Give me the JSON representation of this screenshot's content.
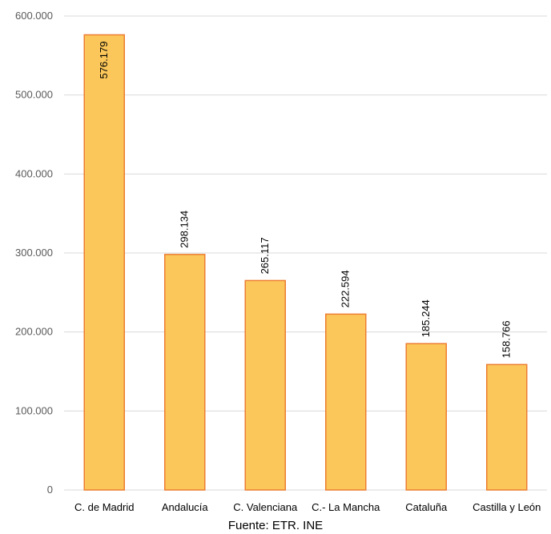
{
  "chart_data": {
    "type": "bar",
    "categories": [
      "C. de Madrid",
      "Andalucía",
      "C. Valenciana",
      "C.- La Mancha",
      "Cataluña",
      "Castilla y León"
    ],
    "values": [
      576179,
      298134,
      265117,
      222594,
      185244,
      158766
    ],
    "data_labels": [
      "576.179",
      "298.134",
      "265.117",
      "222.594",
      "185.244",
      "158.766"
    ],
    "yticks": [
      0,
      100000,
      200000,
      300000,
      400000,
      500000,
      600000
    ],
    "ytick_labels": [
      "0",
      "100.000",
      "200.000",
      "300.000",
      "400.000",
      "500.000",
      "600.000"
    ],
    "ylim": [
      0,
      600000
    ],
    "grid": true,
    "legend": "none",
    "bar_color": "#FBC75A",
    "bar_edge_color": "#ED7D31"
  },
  "source_note": "Fuente: ETR. INE"
}
